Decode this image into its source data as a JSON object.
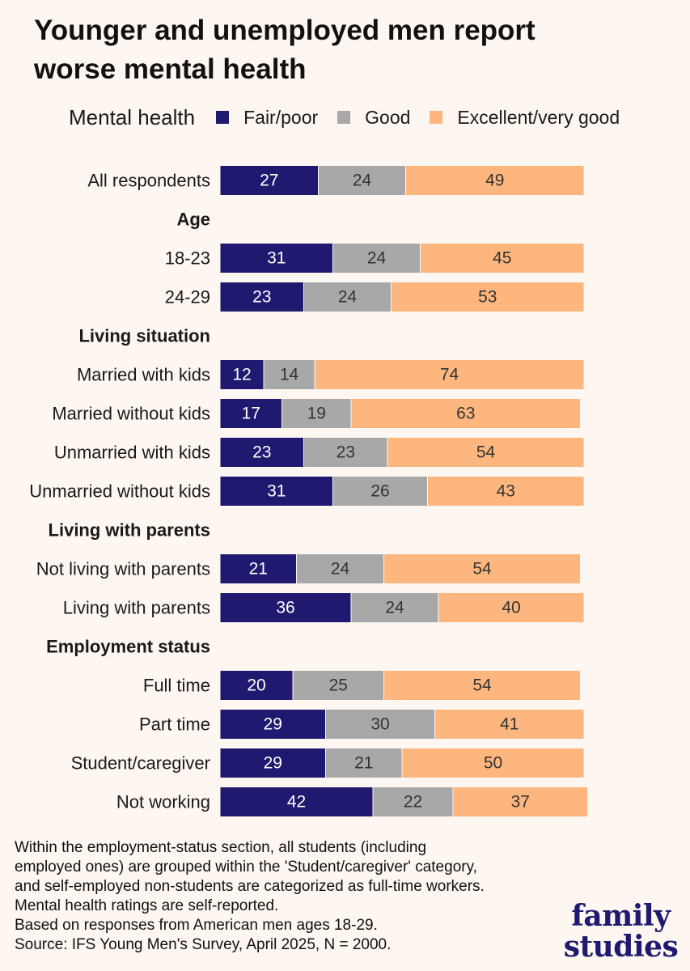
{
  "title_lines": [
    "Younger and unemployed men report",
    "worse mental health"
  ],
  "legend": {
    "title": "Mental health",
    "items": [
      {
        "label": "Fair/poor",
        "color": "#1f1a70"
      },
      {
        "label": "Good",
        "color": "#a8a8a8"
      },
      {
        "label": "Excellent/very good",
        "color": "#fdb77e"
      }
    ]
  },
  "chart_data": {
    "type": "bar",
    "orientation": "horizontal",
    "stacked": true,
    "unit": "percent",
    "xlim": [
      0,
      100
    ],
    "series": [
      {
        "name": "Fair/poor",
        "color": "#1f1a70",
        "label_color": "#ffffff"
      },
      {
        "name": "Good",
        "color": "#a8a8a8",
        "label_color": "#333333"
      },
      {
        "name": "Excellent/very good",
        "color": "#fdb77e",
        "label_color": "#333333"
      }
    ],
    "rows": [
      {
        "kind": "bar",
        "label": "All respondents",
        "values": [
          27,
          24,
          49
        ]
      },
      {
        "kind": "header",
        "label": "Age"
      },
      {
        "kind": "bar",
        "label": "18-23",
        "values": [
          31,
          24,
          45
        ]
      },
      {
        "kind": "bar",
        "label": "24-29",
        "values": [
          23,
          24,
          53
        ]
      },
      {
        "kind": "header",
        "label": "Living situation"
      },
      {
        "kind": "bar",
        "label": "Married with kids",
        "values": [
          12,
          14,
          74
        ]
      },
      {
        "kind": "bar",
        "label": "Married without kids",
        "values": [
          17,
          19,
          63
        ]
      },
      {
        "kind": "bar",
        "label": "Unmarried with kids",
        "values": [
          23,
          23,
          54
        ]
      },
      {
        "kind": "bar",
        "label": "Unmarried without kids",
        "values": [
          31,
          26,
          43
        ]
      },
      {
        "kind": "header",
        "label": "Living with parents"
      },
      {
        "kind": "bar",
        "label": "Not living with parents",
        "values": [
          21,
          24,
          54
        ]
      },
      {
        "kind": "bar",
        "label": "Living with parents",
        "values": [
          36,
          24,
          40
        ]
      },
      {
        "kind": "header",
        "label": "Employment status"
      },
      {
        "kind": "bar",
        "label": "Full time",
        "values": [
          20,
          25,
          54
        ]
      },
      {
        "kind": "bar",
        "label": "Part time",
        "values": [
          29,
          30,
          41
        ]
      },
      {
        "kind": "bar",
        "label": "Student/caregiver",
        "values": [
          29,
          21,
          50
        ]
      },
      {
        "kind": "bar",
        "label": "Not working",
        "values": [
          42,
          22,
          37
        ]
      }
    ]
  },
  "notes": [
    "Within the employment-status section, all students (including",
    "employed ones) are grouped within the 'Student/caregiver' category,",
    "and self-employed non-students are categorized as full-time workers.",
    "Mental health ratings are self-reported.",
    "Based on responses from American men ages 18-29.",
    "Source: IFS Young Men's Survey, April 2025, N = 2000."
  ],
  "logo_lines": [
    "family",
    "studies"
  ]
}
